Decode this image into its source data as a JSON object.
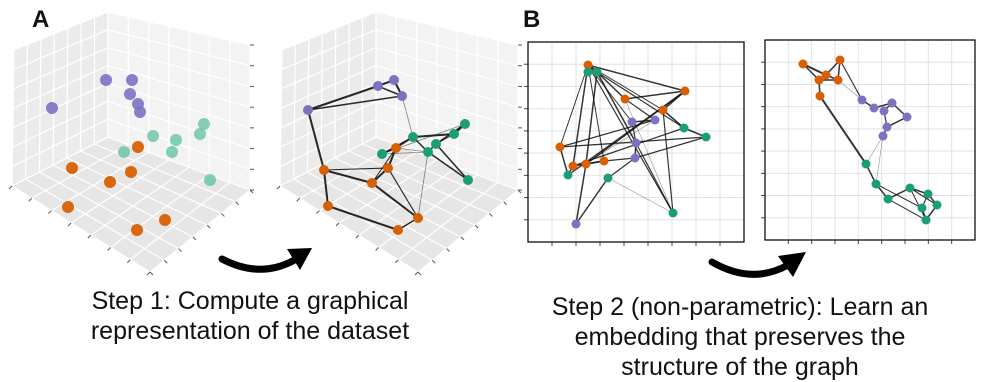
{
  "panels": {
    "a": {
      "label": "A"
    },
    "b": {
      "label": "B"
    }
  },
  "captions": {
    "step1": [
      "Step 1: Compute a graphical",
      "representation of the dataset"
    ],
    "step2": [
      "Step 2 (non-parametric): Learn an",
      "embedding that preserves the",
      "structure of the graph"
    ]
  },
  "colors": {
    "cluster_purple": "#7b72c2",
    "cluster_green": "#1b9e77",
    "cluster_orange": "#d95f02",
    "cluster_green_light": "#66c2a5",
    "edge": "#111111",
    "arrow": "#000000"
  },
  "icons": {
    "arrow": "curved-arrow-icon"
  }
}
